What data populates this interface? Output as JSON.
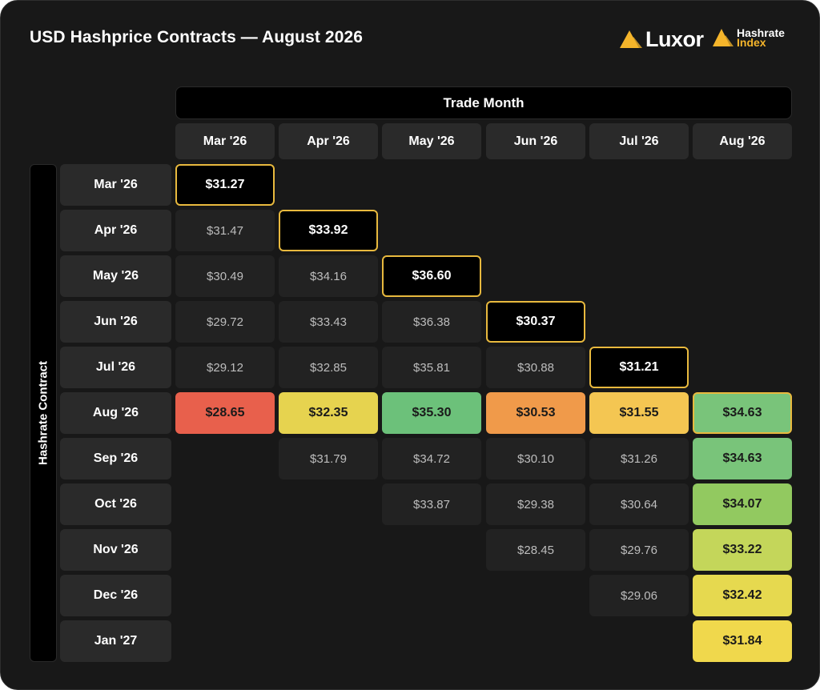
{
  "header": {
    "title": "USD Hashprice Contracts — August 2026",
    "logo_luxor": "Luxor",
    "logo_hri_line1": "Hashrate",
    "logo_hri_line2": "Index",
    "accent_color": "#f5b52b"
  },
  "chart_data": {
    "type": "table",
    "title": "USD Hashprice Contracts — August 2026",
    "column_group_label": "Trade Month",
    "row_group_label": "Hashrate Contract",
    "columns": [
      "Mar '26",
      "Apr '26",
      "May '26",
      "Jun '26",
      "Jul '26",
      "Aug '26"
    ],
    "rows": [
      {
        "label": "Mar '26",
        "cells": [
          "$31.27",
          null,
          null,
          null,
          null,
          null
        ]
      },
      {
        "label": "Apr '26",
        "cells": [
          "$31.47",
          "$33.92",
          null,
          null,
          null,
          null
        ]
      },
      {
        "label": "May '26",
        "cells": [
          "$30.49",
          "$34.16",
          "$36.60",
          null,
          null,
          null
        ]
      },
      {
        "label": "Jun '26",
        "cells": [
          "$29.72",
          "$33.43",
          "$36.38",
          "$30.37",
          null,
          null
        ]
      },
      {
        "label": "Jul '26",
        "cells": [
          "$29.12",
          "$32.85",
          "$35.81",
          "$30.88",
          "$31.21",
          null
        ]
      },
      {
        "label": "Aug '26",
        "cells": [
          "$28.65",
          "$32.35",
          "$35.30",
          "$30.53",
          "$31.55",
          "$34.63"
        ]
      },
      {
        "label": "Sep '26",
        "cells": [
          null,
          "$31.79",
          "$34.72",
          "$30.10",
          "$31.26",
          "$34.63"
        ]
      },
      {
        "label": "Oct '26",
        "cells": [
          null,
          null,
          "$33.87",
          "$29.38",
          "$30.64",
          "$34.07"
        ]
      },
      {
        "label": "Nov '26",
        "cells": [
          null,
          null,
          null,
          "$28.45",
          "$29.76",
          "$33.22"
        ]
      },
      {
        "label": "Dec '26",
        "cells": [
          null,
          null,
          null,
          null,
          "$29.06",
          "$32.42"
        ]
      },
      {
        "label": "Jan '27",
        "cells": [
          null,
          null,
          null,
          null,
          null,
          "$31.84"
        ]
      }
    ],
    "highlight_row_label": "Aug '26",
    "highlight_column_label": "Aug '26",
    "highlight_colors": {
      "Aug '26|Mar '26": "#e8604c",
      "Aug '26|Apr '26": "#e6d34f",
      "Aug '26|May '26": "#6cc17a",
      "Aug '26|Jun '26": "#f09a4a",
      "Aug '26|Jul '26": "#f4c652",
      "Aug '26|Aug '26": "#79c47a",
      "Sep '26|Aug '26": "#79c47a",
      "Oct '26|Aug '26": "#92c960",
      "Nov '26|Aug '26": "#c4d65a",
      "Dec '26|Aug '26": "#e6d94f",
      "Jan '27|Aug '26": "#f0d84c"
    },
    "diagonal_border_color": "#e8b93e"
  }
}
